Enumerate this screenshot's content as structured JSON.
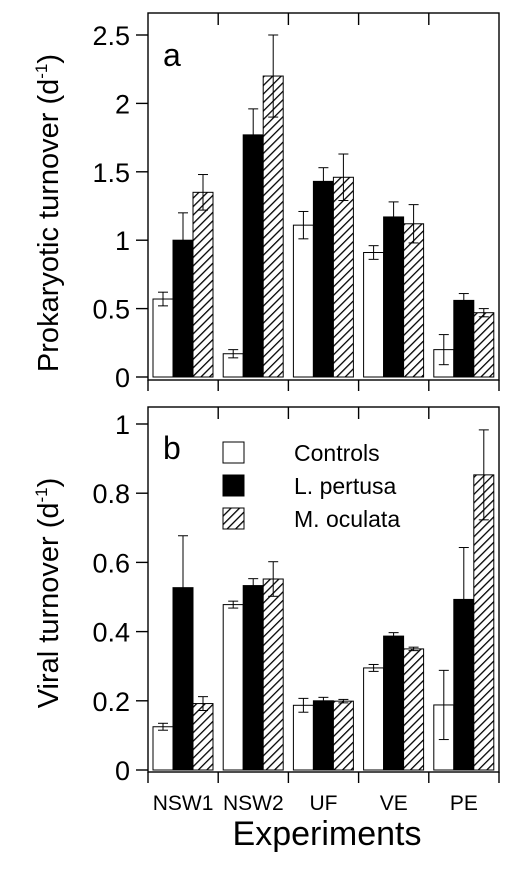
{
  "chart_data": [
    {
      "type": "bar",
      "panel_label": "a",
      "ylabel": "Prokaryotic turnover (d",
      "ylabel_sup": "-1",
      "ylabel_close": ")",
      "ylim": [
        0,
        2.65
      ],
      "yticks": [
        0,
        0.5,
        1,
        1.5,
        2,
        2.5
      ],
      "ytick_labels": [
        "0",
        "0.5",
        "1",
        "1.5",
        "2",
        "2.5"
      ],
      "categories": [
        "NSW1",
        "NSW2",
        "UF",
        "VE",
        "PE"
      ],
      "series": [
        {
          "name": "Controls",
          "values": [
            0.57,
            0.17,
            1.11,
            0.91,
            0.2
          ],
          "errors": [
            0.05,
            0.03,
            0.1,
            0.05,
            0.11
          ]
        },
        {
          "name": "L. pertusa",
          "values": [
            1.0,
            1.77,
            1.43,
            1.17,
            0.56
          ],
          "errors": [
            0.2,
            0.19,
            0.1,
            0.11,
            0.05
          ]
        },
        {
          "name": "M. oculata",
          "values": [
            1.35,
            2.2,
            1.46,
            1.12,
            0.47
          ],
          "errors": [
            0.13,
            0.3,
            0.17,
            0.14,
            0.03
          ]
        }
      ]
    },
    {
      "type": "bar",
      "panel_label": "b",
      "ylabel": "Viral turnover (d",
      "ylabel_sup": "-1",
      "ylabel_close": ")",
      "ylim": [
        0,
        1
      ],
      "yticks": [
        0,
        0.2,
        0.4,
        0.6,
        0.8,
        1
      ],
      "ytick_labels": [
        "0",
        "0.2",
        "0.4",
        "0.6",
        "0.8",
        "1"
      ],
      "categories": [
        "NSW1",
        "NSW2",
        "UF",
        "VE",
        "PE"
      ],
      "series": [
        {
          "name": "Controls",
          "values": [
            0.125,
            0.478,
            0.187,
            0.295,
            0.188
          ],
          "errors": [
            0.01,
            0.01,
            0.02,
            0.01,
            0.1
          ]
        },
        {
          "name": "L. pertusa",
          "values": [
            0.527,
            0.533,
            0.2,
            0.387,
            0.493
          ],
          "errors": [
            0.15,
            0.02,
            0.01,
            0.01,
            0.15
          ]
        },
        {
          "name": "M. oculata",
          "values": [
            0.192,
            0.552,
            0.199,
            0.35,
            0.853
          ],
          "errors": [
            0.02,
            0.05,
            0.005,
            0.005,
            0.13
          ]
        }
      ],
      "legend_position": "top-center"
    }
  ],
  "xlabel": "Experiments",
  "colors": {
    "controls": "#ffffff",
    "l_pertusa": "#000000",
    "m_oculata": "hatch"
  }
}
